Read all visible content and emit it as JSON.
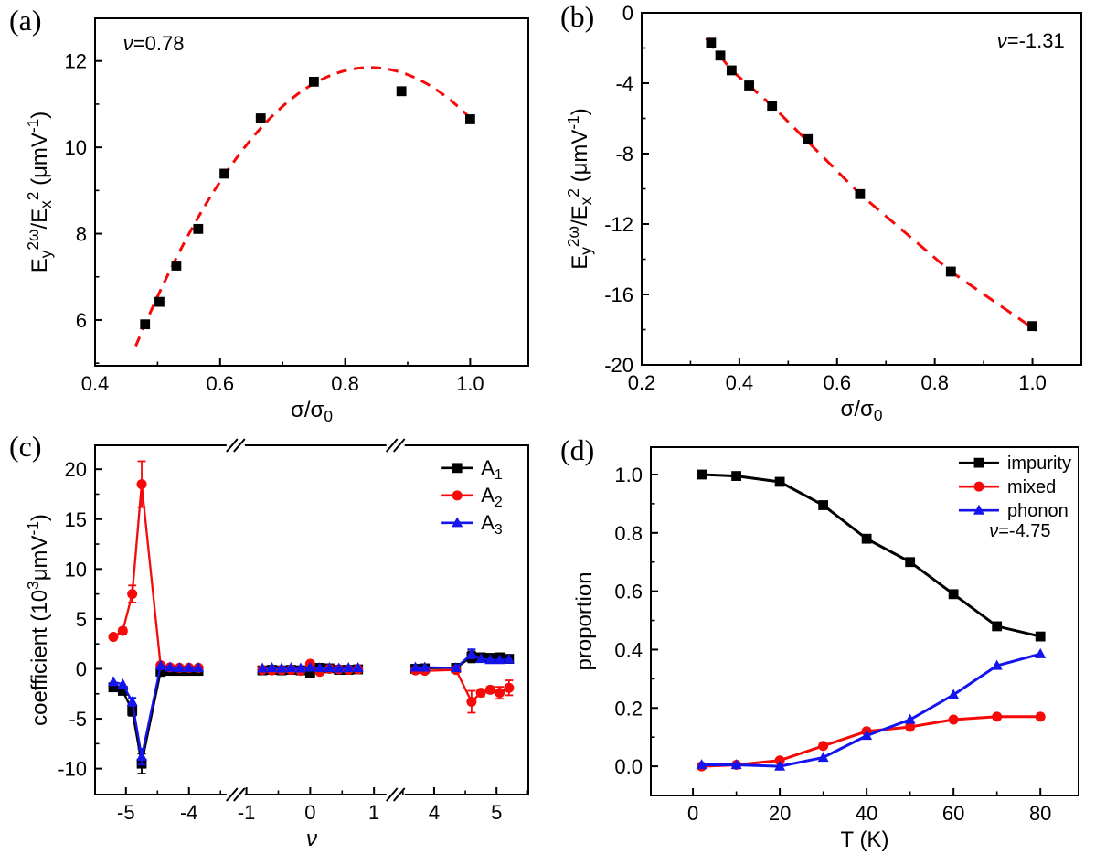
{
  "colors": {
    "black": "#000000",
    "red": "#f60909",
    "blue": "#1414ee",
    "frame": "#000000",
    "background": "#ffffff"
  },
  "chart_data": [
    {
      "id": "a",
      "panel_label": "(a)",
      "type": "scatter",
      "xlabel": [
        {
          "t": "σ/σ"
        },
        {
          "t": "0",
          "s": "sub"
        }
      ],
      "ylabel": [
        {
          "t": "E"
        },
        {
          "t": "y",
          "s": "sub"
        },
        {
          "t": "2ω",
          "s": "sup"
        },
        {
          "t": "/E"
        },
        {
          "t": "x",
          "s": "sub"
        },
        {
          "t": "2",
          "s": "sup"
        },
        {
          "t": " (μmV"
        },
        {
          "t": "-1",
          "s": "sup"
        },
        {
          "t": ")"
        }
      ],
      "xlim": [
        0.4,
        1.093
      ],
      "ylim": [
        4.94,
        12.99
      ],
      "xticks": {
        "values": [
          0.4,
          0.6,
          0.8,
          1.0
        ],
        "labels": [
          "0.4",
          "0.6",
          "0.8",
          "1.0"
        ]
      },
      "xminor": [
        0.5,
        0.7,
        0.9
      ],
      "yticks": {
        "values": [
          6,
          8,
          10,
          12
        ],
        "labels": [
          "6",
          "8",
          "10",
          "12"
        ]
      },
      "yminor": [
        5,
        7,
        9,
        11
      ],
      "series": [
        {
          "key": "data",
          "color": "black",
          "marker": "square",
          "line": false,
          "points": [
            [
              0.48,
              5.9
            ],
            [
              0.503,
              6.42
            ],
            [
              0.53,
              7.26
            ],
            [
              0.565,
              8.11
            ],
            [
              0.607,
              9.39
            ],
            [
              0.665,
              10.67
            ],
            [
              0.75,
              11.52
            ],
            [
              0.89,
              11.3
            ],
            [
              1.0,
              10.65
            ]
          ]
        }
      ],
      "fit": {
        "kind": "quad",
        "peak": [
          0.84,
          11.85
        ],
        "a": -45.9,
        "xrange": [
          0.465,
          0.998
        ],
        "color": "red",
        "dash": "11 8"
      },
      "annotations": [
        {
          "runs": [
            {
              "t": "ν",
              "s": "it"
            },
            {
              "t": "=0.78"
            }
          ],
          "fx": 0.065,
          "fy": 0.092,
          "anchor": "start",
          "font": 22
        }
      ]
    },
    {
      "id": "b",
      "panel_label": "(b)",
      "type": "scatter",
      "xlabel": [
        {
          "t": "σ/σ"
        },
        {
          "t": "0",
          "s": "sub"
        }
      ],
      "ylabel": [
        {
          "t": "E"
        },
        {
          "t": "y",
          "s": "sub"
        },
        {
          "t": "2ω",
          "s": "sup"
        },
        {
          "t": "/E"
        },
        {
          "t": "x",
          "s": "sub"
        },
        {
          "t": "2",
          "s": "sup"
        },
        {
          "t": " (μmV"
        },
        {
          "t": "-1",
          "s": "sup"
        },
        {
          "t": ")"
        }
      ],
      "xlim": [
        0.2,
        1.1
      ],
      "ylim": [
        -20,
        0
      ],
      "xticks": {
        "values": [
          0.2,
          0.4,
          0.6,
          0.8,
          1.0
        ],
        "labels": [
          "0.2",
          "0.4",
          "0.6",
          "0.8",
          "1.0"
        ]
      },
      "xminor": [
        0.3,
        0.5,
        0.7,
        0.9
      ],
      "yticks": {
        "values": [
          0,
          -4,
          -8,
          -12,
          -16,
          -20
        ],
        "labels": [
          "0",
          "-4",
          "-8",
          "-12",
          "-16",
          "-20"
        ]
      },
      "yminor": [
        -2,
        -6,
        -10,
        -14,
        -18
      ],
      "series": [
        {
          "key": "data",
          "color": "black",
          "marker": "square",
          "line": false,
          "points": [
            [
              0.342,
              -1.7
            ],
            [
              0.361,
              -2.43
            ],
            [
              0.384,
              -3.27
            ],
            [
              0.42,
              -4.13
            ],
            [
              0.467,
              -5.28
            ],
            [
              0.54,
              -7.18
            ],
            [
              0.647,
              -10.3
            ],
            [
              0.833,
              -14.7
            ],
            [
              1.0,
              -17.8
            ]
          ]
        }
      ],
      "fit": {
        "kind": "polyline",
        "color": "red",
        "dash": "14 9",
        "points": [
          [
            0.332,
            -1.45
          ],
          [
            0.384,
            -3.27
          ],
          [
            0.467,
            -5.28
          ],
          [
            0.647,
            -10.3
          ],
          [
            0.833,
            -14.7
          ],
          [
            1.008,
            -18.05
          ]
        ]
      },
      "annotations": [
        {
          "runs": [
            {
              "t": "ν",
              "s": "it"
            },
            {
              "t": "=-1.31"
            }
          ],
          "fx": 0.962,
          "fy": 0.099,
          "anchor": "end",
          "font": 22
        }
      ]
    },
    {
      "id": "c",
      "panel_label": "(c)",
      "type": "line-broken-axis",
      "xlabel": [
        {
          "t": "ν",
          "s": "it"
        }
      ],
      "ylabel": [
        {
          "t": "coefficient (10"
        },
        {
          "t": "3",
          "s": "sup"
        },
        {
          "t": "μmV"
        },
        {
          "t": "-1",
          "s": "sup"
        },
        {
          "t": ")"
        }
      ],
      "segments": [
        {
          "xlim": [
            -5.49,
            -3.38
          ],
          "f": [
            0,
            0.307
          ]
        },
        {
          "xlim": [
            -1.05,
            1.28
          ],
          "f": [
            0.342,
            0.685
          ]
        },
        {
          "xlim": [
            3.44,
            5.51
          ],
          "f": [
            0.702,
            1.0
          ]
        }
      ],
      "ylim": [
        -12.6,
        22.4
      ],
      "xticks": {
        "values": [
          -5,
          -4,
          -1,
          0,
          1,
          4,
          5
        ],
        "labels": [
          "-5",
          "-4",
          "-1",
          "0",
          "1",
          "4",
          "5"
        ]
      },
      "xminor": [
        -4.5,
        -3.5,
        -0.5,
        0.5,
        3.5,
        4.5,
        5.5
      ],
      "yticks": {
        "values": [
          -10,
          -5,
          0,
          5,
          10,
          15,
          20
        ],
        "labels": [
          "-10",
          "-5",
          "0",
          "5",
          "10",
          "15",
          "20"
        ]
      },
      "yminor": [
        -7.5,
        -2.5,
        2.5,
        7.5,
        12.5,
        17.5
      ],
      "series": [
        {
          "key": "A1",
          "color": "black",
          "marker": "square",
          "line": true,
          "points": [
            [
              -5.2,
              -1.85
            ],
            [
              -5.05,
              -2.2,
              0.3
            ],
            [
              -4.9,
              -4.2,
              0.5
            ],
            [
              -4.75,
              -9.5,
              1.0
            ],
            [
              -4.45,
              -0.3
            ],
            [
              -4.3,
              -0.2
            ],
            [
              -4.15,
              -0.2
            ],
            [
              -4.0,
              -0.2
            ],
            [
              -3.85,
              -0.2
            ],
            [
              -0.75,
              -0.15
            ],
            [
              -0.6,
              -0.1
            ],
            [
              -0.45,
              -0.15
            ],
            [
              -0.3,
              -0.1
            ],
            [
              -0.15,
              -0.15
            ],
            [
              0,
              -0.45
            ],
            [
              0.15,
              0.1
            ],
            [
              0.3,
              0.05
            ],
            [
              0.45,
              -0.1
            ],
            [
              0.6,
              -0.1
            ],
            [
              0.75,
              -0.05
            ],
            [
              3.7,
              0.0
            ],
            [
              3.85,
              0.05
            ],
            [
              4.35,
              0.1
            ],
            [
              4.6,
              1.2,
              0.55
            ],
            [
              4.75,
              1.15
            ],
            [
              4.9,
              1.1
            ],
            [
              5.05,
              1.15
            ],
            [
              5.2,
              1.0
            ]
          ]
        },
        {
          "key": "A2",
          "color": "red",
          "marker": "circle",
          "line": true,
          "points": [
            [
              -5.2,
              3.2
            ],
            [
              -5.05,
              3.8,
              0.3
            ],
            [
              -4.9,
              7.5,
              0.85
            ],
            [
              -4.75,
              18.5,
              2.3
            ],
            [
              -4.45,
              0.35
            ],
            [
              -4.3,
              0.15
            ],
            [
              -4.15,
              0.1
            ],
            [
              -4.0,
              0.1
            ],
            [
              -3.85,
              0.1
            ],
            [
              -0.75,
              -0.1
            ],
            [
              -0.6,
              -0.15
            ],
            [
              -0.45,
              -0.1
            ],
            [
              -0.3,
              -0.1
            ],
            [
              -0.15,
              -0.2
            ],
            [
              0,
              0.5
            ],
            [
              0.15,
              -0.3
            ],
            [
              0.3,
              0.0
            ],
            [
              0.45,
              -0.05
            ],
            [
              0.6,
              -0.1
            ],
            [
              0.75,
              -0.05
            ],
            [
              3.7,
              -0.15
            ],
            [
              3.85,
              -0.2
            ],
            [
              4.35,
              -0.1
            ],
            [
              4.6,
              -3.3,
              1.1
            ],
            [
              4.75,
              -2.4,
              0.35
            ],
            [
              4.9,
              -2.1,
              0.3
            ],
            [
              5.05,
              -2.4,
              0.6
            ],
            [
              5.2,
              -1.9,
              0.75
            ]
          ]
        },
        {
          "key": "A3",
          "color": "blue",
          "marker": "triangle",
          "line": true,
          "points": [
            [
              -5.2,
              -1.3
            ],
            [
              -5.05,
              -1.55
            ],
            [
              -4.9,
              -3.3,
              0.4
            ],
            [
              -4.75,
              -8.8,
              0.8
            ],
            [
              -4.45,
              0.3
            ],
            [
              -4.3,
              0.15
            ],
            [
              -4.15,
              0.1
            ],
            [
              -4.0,
              0.1
            ],
            [
              -3.85,
              0.1
            ],
            [
              -0.75,
              0.05
            ],
            [
              -0.6,
              0.1
            ],
            [
              -0.45,
              0.05
            ],
            [
              -0.3,
              0.1
            ],
            [
              -0.15,
              0.05
            ],
            [
              0,
              0.15
            ],
            [
              0.15,
              0.1
            ],
            [
              0.3,
              0.1
            ],
            [
              0.45,
              0.05
            ],
            [
              0.6,
              0.1
            ],
            [
              0.75,
              0.1
            ],
            [
              3.7,
              0.15
            ],
            [
              3.85,
              0.15
            ],
            [
              4.35,
              0.1
            ],
            [
              4.6,
              1.5,
              0.45
            ],
            [
              4.75,
              1.0
            ],
            [
              4.9,
              0.9
            ],
            [
              5.05,
              0.9
            ],
            [
              5.2,
              0.95
            ]
          ]
        }
      ],
      "legend": {
        "fx": 0.8,
        "fy": 0.065,
        "dy": 30,
        "len": 34,
        "font": 22,
        "items": [
          {
            "series": 0,
            "label": [
              {
                "t": "A"
              },
              {
                "t": "1",
                "s": "sub"
              }
            ]
          },
          {
            "series": 1,
            "label": [
              {
                "t": "A"
              },
              {
                "t": "2",
                "s": "sub"
              }
            ]
          },
          {
            "series": 2,
            "label": [
              {
                "t": "A"
              },
              {
                "t": "3",
                "s": "sub"
              }
            ]
          }
        ]
      },
      "annotations": []
    },
    {
      "id": "d",
      "panel_label": "(d)",
      "type": "line",
      "xlabel": [
        {
          "t": "T (K)"
        }
      ],
      "ylabel": [
        {
          "t": "proportion"
        }
      ],
      "xlim": [
        -9.7,
        88.8
      ],
      "ylim": [
        -0.1,
        1.094
      ],
      "xticks": {
        "values": [
          0,
          20,
          40,
          60,
          80
        ],
        "labels": [
          "0",
          "20",
          "40",
          "60",
          "80"
        ]
      },
      "xminor": [
        10,
        30,
        50,
        70
      ],
      "yticks": {
        "values": [
          0.0,
          0.2,
          0.4,
          0.6,
          0.8,
          1.0
        ],
        "labels": [
          "0.0",
          "0.2",
          "0.4",
          "0.6",
          "0.8",
          "1.0"
        ]
      },
      "yminor": [
        0.1,
        0.3,
        0.5,
        0.7,
        0.9
      ],
      "series": [
        {
          "key": "impurity",
          "color": "black",
          "marker": "square",
          "line": true,
          "lw": 3,
          "points": [
            [
              2,
              1.0
            ],
            [
              10,
              0.995
            ],
            [
              20,
              0.975
            ],
            [
              30,
              0.895
            ],
            [
              40,
              0.78
            ],
            [
              50,
              0.7
            ],
            [
              60,
              0.59
            ],
            [
              70,
              0.48
            ],
            [
              80,
              0.445
            ]
          ]
        },
        {
          "key": "mixed",
          "color": "red",
          "marker": "circle",
          "line": true,
          "lw": 3,
          "points": [
            [
              2,
              0.0
            ],
            [
              10,
              0.005
            ],
            [
              20,
              0.02
            ],
            [
              30,
              0.07
            ],
            [
              40,
              0.12
            ],
            [
              50,
              0.135
            ],
            [
              60,
              0.16
            ],
            [
              70,
              0.17
            ],
            [
              80,
              0.17
            ]
          ]
        },
        {
          "key": "phonon",
          "color": "blue",
          "marker": "triangle",
          "line": true,
          "lw": 3,
          "points": [
            [
              2,
              0.005
            ],
            [
              10,
              0.005
            ],
            [
              20,
              0.0
            ],
            [
              30,
              0.03
            ],
            [
              40,
              0.105
            ],
            [
              50,
              0.16
            ],
            [
              60,
              0.245
            ],
            [
              70,
              0.345
            ],
            [
              80,
              0.385
            ]
          ]
        }
      ],
      "legend": {
        "fx": 0.72,
        "fy": 0.045,
        "dy": 26,
        "len": 44,
        "font": 20,
        "items": [
          {
            "series": 0,
            "label": [
              {
                "t": "impurity"
              }
            ]
          },
          {
            "series": 1,
            "label": [
              {
                "t": "mixed"
              }
            ]
          },
          {
            "series": 2,
            "label": [
              {
                "t": "phonon"
              }
            ]
          }
        ]
      },
      "annotations": [
        {
          "runs": [
            {
              "t": "ν",
              "s": "it"
            },
            {
              "t": "=-4.75"
            }
          ],
          "fx": 0.863,
          "fy": 0.257,
          "anchor": "middle",
          "font": 20
        }
      ]
    }
  ]
}
